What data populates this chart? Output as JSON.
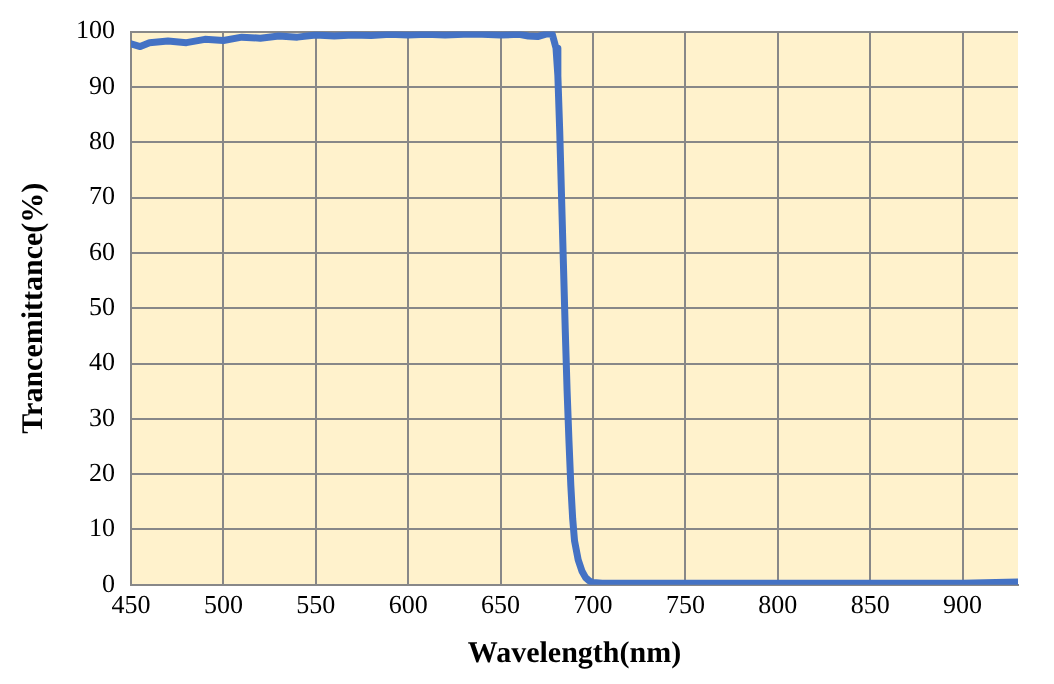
{
  "chart_data": {
    "type": "line",
    "xlabel": "Wavelength(nm)",
    "ylabel": "Trancemittance(%)",
    "xlim": [
      450,
      930
    ],
    "xticks": [
      450,
      500,
      550,
      600,
      650,
      700,
      750,
      800,
      850,
      900
    ],
    "ylim": [
      0,
      100
    ],
    "yticks": [
      0,
      10,
      20,
      30,
      40,
      50,
      60,
      70,
      80,
      90,
      100
    ],
    "grid": true,
    "legend": false,
    "marker": "none",
    "line_style": "solid",
    "series": [
      {
        "color": "#4472c4",
        "x": [
          450,
          455,
          460,
          470,
          480,
          490,
          500,
          510,
          520,
          530,
          540,
          550,
          560,
          570,
          580,
          590,
          600,
          610,
          620,
          630,
          640,
          650,
          660,
          665,
          670,
          675,
          678,
          680,
          681,
          682,
          683,
          684,
          685,
          686,
          687,
          688,
          689,
          690,
          692,
          694,
          696,
          698,
          700,
          705,
          710,
          750,
          800,
          850,
          900,
          930
        ],
        "values": [
          97.8,
          97.3,
          98,
          98.3,
          98,
          98.6,
          98.4,
          99,
          98.8,
          99.2,
          99,
          99.4,
          99.2,
          99.4,
          99.3,
          99.5,
          99.4,
          99.5,
          99.4,
          99.5,
          99.5,
          99.4,
          99.5,
          99.2,
          99.1,
          99.6,
          99.5,
          97,
          92,
          82,
          70,
          58,
          46,
          35,
          26,
          18,
          12,
          8,
          4.5,
          2.5,
          1.3,
          0.7,
          0.4,
          0.3,
          0.3,
          0.3,
          0.3,
          0.3,
          0.3,
          0.5
        ]
      }
    ]
  }
}
